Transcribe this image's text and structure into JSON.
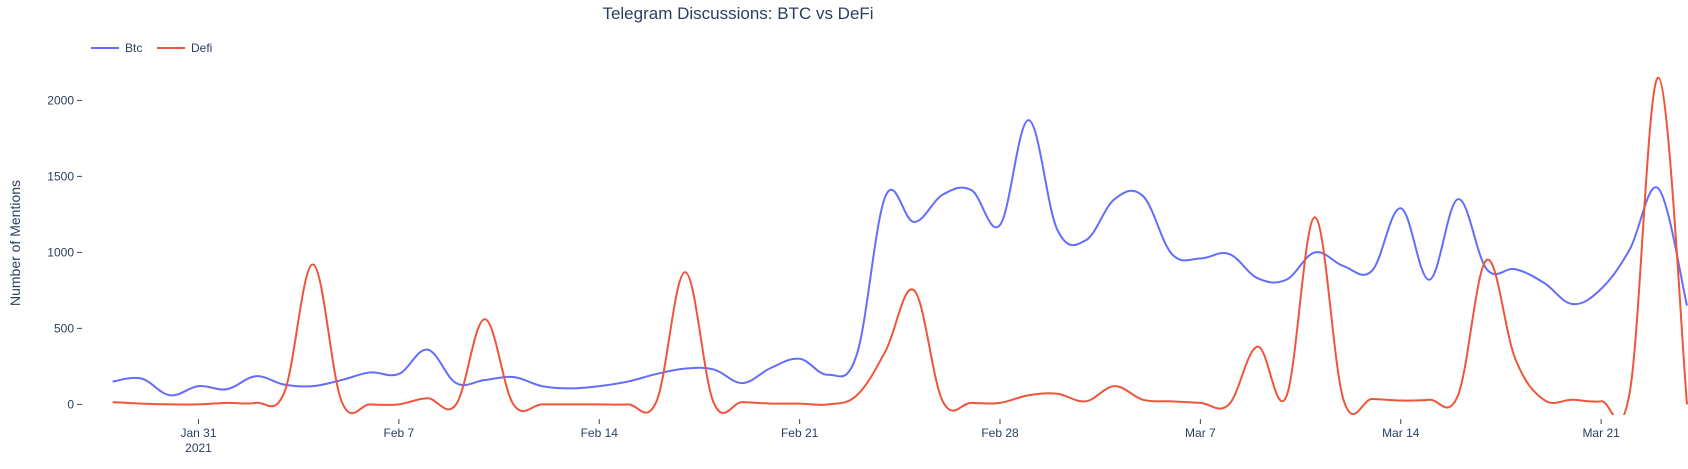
{
  "chart_data": {
    "type": "line",
    "title": "Telegram Discussions: BTC vs DeFi",
    "xlabel": "",
    "ylabel": "Number of Mentions",
    "ylim": [
      -70,
      2200
    ],
    "xlim": [
      "2021-01-27",
      "2021-03-24"
    ],
    "grid": false,
    "legend_placement": "top-left",
    "x_ticks": [
      {
        "date": "2021-01-31",
        "label": "Jan 31",
        "sublabel": "2021"
      },
      {
        "date": "2021-02-07",
        "label": "Feb 7",
        "sublabel": ""
      },
      {
        "date": "2021-02-14",
        "label": "Feb 14",
        "sublabel": ""
      },
      {
        "date": "2021-02-21",
        "label": "Feb 21",
        "sublabel": ""
      },
      {
        "date": "2021-02-28",
        "label": "Feb 28",
        "sublabel": ""
      },
      {
        "date": "2021-03-07",
        "label": "Mar 7",
        "sublabel": ""
      },
      {
        "date": "2021-03-14",
        "label": "Mar 14",
        "sublabel": ""
      },
      {
        "date": "2021-03-21",
        "label": "Mar 21",
        "sublabel": ""
      }
    ],
    "y_ticks": [
      {
        "value": 0,
        "label": "0"
      },
      {
        "value": 500,
        "label": "500"
      },
      {
        "value": 1000,
        "label": "1000"
      },
      {
        "value": 1500,
        "label": "1500"
      },
      {
        "value": 2000,
        "label": "2000"
      }
    ],
    "x": [
      "2021-01-28",
      "2021-01-29",
      "2021-01-30",
      "2021-01-31",
      "2021-02-01",
      "2021-02-02",
      "2021-02-03",
      "2021-02-04",
      "2021-02-05",
      "2021-02-06",
      "2021-02-07",
      "2021-02-08",
      "2021-02-09",
      "2021-02-10",
      "2021-02-11",
      "2021-02-12",
      "2021-02-13",
      "2021-02-14",
      "2021-02-15",
      "2021-02-16",
      "2021-02-17",
      "2021-02-18",
      "2021-02-19",
      "2021-02-20",
      "2021-02-21",
      "2021-02-22",
      "2021-02-23",
      "2021-02-24",
      "2021-02-25",
      "2021-02-26",
      "2021-02-27",
      "2021-02-28",
      "2021-03-01",
      "2021-03-02",
      "2021-03-03",
      "2021-03-04",
      "2021-03-05",
      "2021-03-06",
      "2021-03-07",
      "2021-03-08",
      "2021-03-09",
      "2021-03-10",
      "2021-03-11",
      "2021-03-12",
      "2021-03-13",
      "2021-03-14",
      "2021-03-15",
      "2021-03-16",
      "2021-03-17",
      "2021-03-18",
      "2021-03-19",
      "2021-03-20",
      "2021-03-21",
      "2021-03-22",
      "2021-03-23",
      "2021-03-24"
    ],
    "series": [
      {
        "name": "Btc",
        "color": "#636efa",
        "values": [
          150,
          170,
          60,
          120,
          100,
          185,
          130,
          120,
          160,
          210,
          200,
          360,
          140,
          160,
          180,
          120,
          105,
          120,
          150,
          200,
          235,
          230,
          140,
          240,
          300,
          195,
          330,
          1370,
          1200,
          1380,
          1410,
          1180,
          1870,
          1150,
          1080,
          1350,
          1370,
          990,
          960,
          990,
          830,
          820,
          1000,
          910,
          880,
          1290,
          820,
          1350,
          890,
          890,
          800,
          660,
          760,
          1020,
          1420,
          650
        ]
      },
      {
        "name": "Defi",
        "color": "#ef553b",
        "values": [
          15,
          5,
          0,
          0,
          10,
          10,
          80,
          920,
          20,
          0,
          0,
          40,
          0,
          560,
          0,
          0,
          0,
          0,
          0,
          20,
          870,
          10,
          15,
          5,
          5,
          0,
          60,
          350,
          750,
          20,
          10,
          10,
          60,
          70,
          20,
          120,
          30,
          20,
          10,
          0,
          380,
          50,
          1230,
          30,
          35,
          25,
          30,
          60,
          950,
          300,
          30,
          30,
          20,
          80,
          2150,
          0
        ]
      }
    ]
  }
}
